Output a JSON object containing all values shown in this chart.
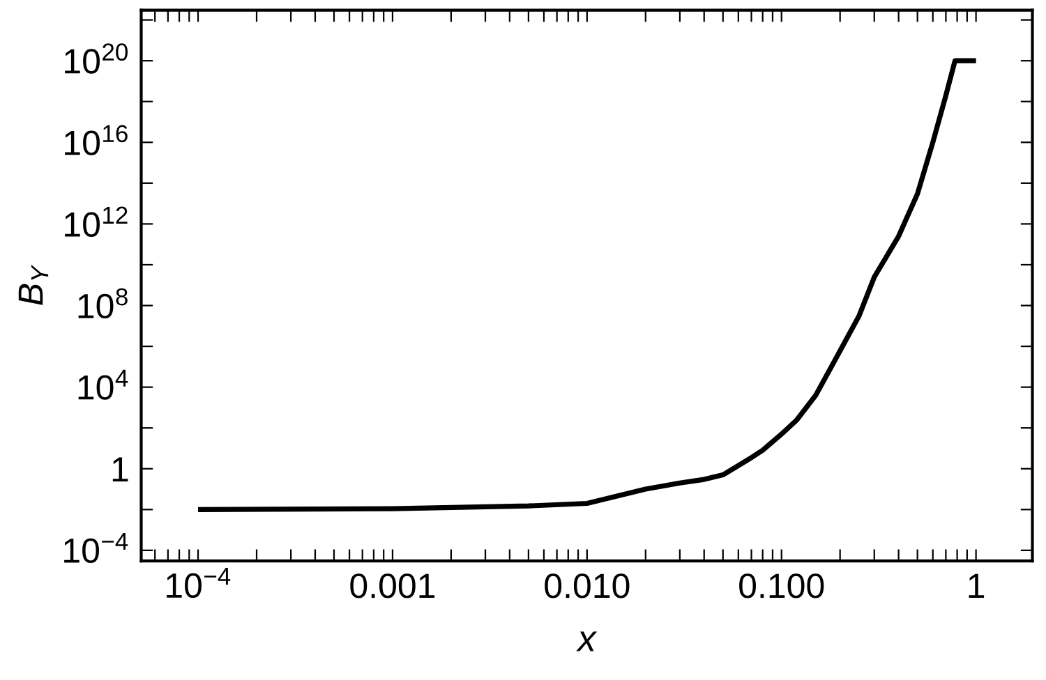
{
  "chart_data": {
    "type": "line",
    "xlabel": "x",
    "ylabel": "B$_{Y}$",
    "log": "xy",
    "grid": false,
    "marker": "none",
    "line_style": "solid",
    "xlim": [
      5.1e-05,
      1.95
    ],
    "ylim": [
      3e-05,
      3e+22
    ],
    "xticks": [
      {
        "value": 0.0001,
        "label": "10$^{−4}$"
      },
      {
        "value": 0.001,
        "label": "0.001"
      },
      {
        "value": 0.01,
        "label": "0.010"
      },
      {
        "value": 0.1,
        "label": "0.100"
      },
      {
        "value": 1,
        "label": "1"
      },
      {
        "value": 6e-05,
        "label": null
      },
      {
        "value": 7e-05,
        "label": null
      },
      {
        "value": 8e-05,
        "label": null
      },
      {
        "value": 9e-05,
        "label": null
      },
      {
        "value": 0.0002,
        "label": null
      },
      {
        "value": 0.0003,
        "label": null
      },
      {
        "value": 0.0004,
        "label": null
      },
      {
        "value": 0.0005,
        "label": null
      },
      {
        "value": 0.0006,
        "label": null
      },
      {
        "value": 0.0007,
        "label": null
      },
      {
        "value": 0.0008,
        "label": null
      },
      {
        "value": 0.0009,
        "label": null
      },
      {
        "value": 0.002,
        "label": null
      },
      {
        "value": 0.003,
        "label": null
      },
      {
        "value": 0.004,
        "label": null
      },
      {
        "value": 0.005,
        "label": null
      },
      {
        "value": 0.006,
        "label": null
      },
      {
        "value": 0.007,
        "label": null
      },
      {
        "value": 0.008,
        "label": null
      },
      {
        "value": 0.009,
        "label": null
      },
      {
        "value": 0.02,
        "label": null
      },
      {
        "value": 0.03,
        "label": null
      },
      {
        "value": 0.04,
        "label": null
      },
      {
        "value": 0.05,
        "label": null
      },
      {
        "value": 0.06,
        "label": null
      },
      {
        "value": 0.07,
        "label": null
      },
      {
        "value": 0.08,
        "label": null
      },
      {
        "value": 0.09,
        "label": null
      },
      {
        "value": 0.2,
        "label": null
      },
      {
        "value": 0.3,
        "label": null
      },
      {
        "value": 0.4,
        "label": null
      },
      {
        "value": 0.5,
        "label": null
      },
      {
        "value": 0.6,
        "label": null
      },
      {
        "value": 0.7,
        "label": null
      },
      {
        "value": 0.8,
        "label": null
      },
      {
        "value": 0.9,
        "label": null
      }
    ],
    "yticks": [
      {
        "value": 0.0001,
        "label": "10$^{−4}$"
      },
      {
        "value": 1,
        "label": "1"
      },
      {
        "value": 10000.0,
        "label": "10$^{4}$"
      },
      {
        "value": 100000000.0,
        "label": "10$^{8}$"
      },
      {
        "value": 1000000000000.0,
        "label": "10$^{12}$"
      },
      {
        "value": 1e+16,
        "label": "10$^{16}$"
      },
      {
        "value": 1e+20,
        "label": "10$^{20}$"
      },
      {
        "value": 0.01,
        "label": null
      },
      {
        "value": 100,
        "label": null
      },
      {
        "value": 1000000.0,
        "label": null
      },
      {
        "value": 10000000000.0,
        "label": null
      },
      {
        "value": 100000000000000.0,
        "label": null
      },
      {
        "value": 1e+18,
        "label": null
      },
      {
        "value": 1e+22,
        "label": null
      }
    ],
    "series": [
      {
        "color": "#000000",
        "x": [
          0.0001,
          0.001,
          0.005,
          0.01,
          0.02,
          0.03,
          0.04,
          0.05,
          0.07,
          0.08,
          0.1,
          0.12,
          0.15,
          0.2,
          0.25,
          0.3,
          0.4,
          0.5,
          0.6,
          0.7,
          0.78,
          1
        ],
        "values": [
          0.01,
          0.011,
          0.015,
          0.02,
          0.1,
          0.2,
          0.3,
          0.5,
          3.5,
          8,
          50,
          250,
          4000,
          600000.0,
          30000000.0,
          2500000000.0,
          250000000000.0,
          30000000000000.0,
          1e+16,
          2e+18,
          1e+20,
          1e+20
        ]
      }
    ]
  }
}
